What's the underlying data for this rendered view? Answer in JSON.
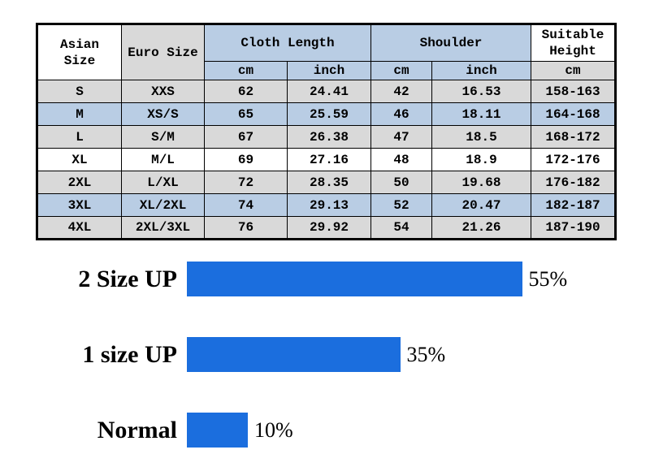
{
  "colors": {
    "bar_blue": "#1b6ede",
    "row_gray": "#d9d9d9",
    "row_blue": "#b9cde4"
  },
  "table": {
    "headers": {
      "asian_size": "Asian Size",
      "euro_size": "Euro Size",
      "cloth_length": "Cloth Length",
      "shoulder": "Shoulder",
      "suitable_height": "Suitable Height",
      "unit_cm": "cm",
      "unit_inch": "inch"
    },
    "rows": [
      {
        "asian": "S",
        "euro": "XXS",
        "length_cm": "62",
        "length_inch": "24.41",
        "shoulder_cm": "42",
        "shoulder_inch": "16.53",
        "height_cm": "158-163"
      },
      {
        "asian": "M",
        "euro": "XS/S",
        "length_cm": "65",
        "length_inch": "25.59",
        "shoulder_cm": "46",
        "shoulder_inch": "18.11",
        "height_cm": "164-168"
      },
      {
        "asian": "L",
        "euro": "S/M",
        "length_cm": "67",
        "length_inch": "26.38",
        "shoulder_cm": "47",
        "shoulder_inch": "18.5",
        "height_cm": "168-172"
      },
      {
        "asian": "XL",
        "euro": "M/L",
        "length_cm": "69",
        "length_inch": "27.16",
        "shoulder_cm": "48",
        "shoulder_inch": "18.9",
        "height_cm": "172-176"
      },
      {
        "asian": "2XL",
        "euro": "L/XL",
        "length_cm": "72",
        "length_inch": "28.35",
        "shoulder_cm": "50",
        "shoulder_inch": "19.68",
        "height_cm": "176-182"
      },
      {
        "asian": "3XL",
        "euro": "XL/2XL",
        "length_cm": "74",
        "length_inch": "29.13",
        "shoulder_cm": "52",
        "shoulder_inch": "20.47",
        "height_cm": "182-187"
      },
      {
        "asian": "4XL",
        "euro": "2XL/3XL",
        "length_cm": "76",
        "length_inch": "29.92",
        "shoulder_cm": "54",
        "shoulder_inch": "21.26",
        "height_cm": "187-190"
      }
    ]
  },
  "chart": {
    "bars": [
      {
        "label": "2 Size UP",
        "value": 55,
        "percent": "55%"
      },
      {
        "label": "1 size UP",
        "value": 35,
        "percent": "35%"
      },
      {
        "label": "Normal",
        "value": 10,
        "percent": "10%"
      }
    ]
  },
  "chart_data": [
    {
      "type": "table",
      "title": "Garment size chart",
      "columns": [
        "Asian Size",
        "Euro Size",
        "Cloth Length cm",
        "Cloth Length inch",
        "Shoulder cm",
        "Shoulder inch",
        "Suitable Height cm"
      ],
      "rows": [
        [
          "S",
          "XXS",
          62,
          24.41,
          42,
          16.53,
          "158-163"
        ],
        [
          "M",
          "XS/S",
          65,
          25.59,
          46,
          18.11,
          "164-168"
        ],
        [
          "L",
          "S/M",
          67,
          26.38,
          47,
          18.5,
          "168-172"
        ],
        [
          "XL",
          "M/L",
          69,
          27.16,
          48,
          18.9,
          "172-176"
        ],
        [
          "2XL",
          "L/XL",
          72,
          28.35,
          50,
          19.68,
          "176-182"
        ],
        [
          "3XL",
          "XL/2XL",
          74,
          29.13,
          52,
          20.47,
          "182-187"
        ],
        [
          "4XL",
          "2XL/3XL",
          76,
          29.92,
          54,
          21.26,
          "187-190"
        ]
      ]
    },
    {
      "type": "bar",
      "orientation": "horizontal",
      "categories": [
        "2 Size UP",
        "1 size UP",
        "Normal"
      ],
      "values": [
        55,
        35,
        10
      ],
      "unit": "%",
      "xlim": [
        0,
        60
      ],
      "grid": false,
      "legend": false,
      "bar_color": "#1b6ede"
    }
  ]
}
